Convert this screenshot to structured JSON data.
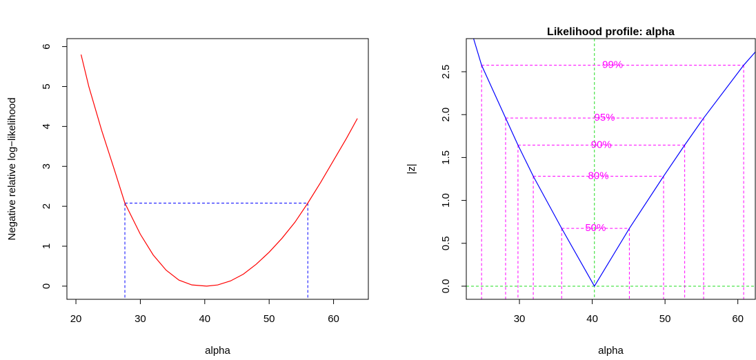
{
  "chart_data": [
    {
      "type": "line",
      "xlabel": "alpha",
      "ylabel": "Negative relative log−likelihood",
      "x": [
        20.8,
        22,
        24,
        26,
        27.6,
        30,
        32,
        34,
        36,
        38,
        40.3,
        42,
        44,
        46,
        48,
        50,
        52,
        54,
        56,
        58,
        60,
        62,
        63.7
      ],
      "values": [
        5.8,
        5.0,
        3.9,
        2.9,
        2.08,
        1.3,
        0.78,
        0.4,
        0.15,
        0.03,
        0,
        0.03,
        0.13,
        0.3,
        0.55,
        0.85,
        1.2,
        1.6,
        2.08,
        2.6,
        3.15,
        3.7,
        4.2
      ],
      "color": "#ff0000",
      "xlim": [
        18.6,
        65.4
      ],
      "ylim": [
        -0.33,
        6.2
      ],
      "xticks": [
        20,
        30,
        40,
        50,
        60
      ],
      "yticks": [
        0,
        1,
        2,
        3,
        4,
        5,
        6
      ],
      "ci": {
        "level": 2.08,
        "lower": 27.6,
        "upper": 56,
        "color": "#0000ff"
      }
    },
    {
      "type": "line",
      "title": "Likelihood profile: alpha",
      "xlabel": "alpha",
      "ylabel": "|z|",
      "x": [
        23.7,
        24.8,
        28.1,
        29.8,
        31.9,
        35.8,
        40.3,
        45.1,
        49.8,
        52.7,
        55.3,
        60.8,
        62.4
      ],
      "values": [
        2.886,
        2.576,
        1.96,
        1.645,
        1.282,
        0.674,
        0,
        0.674,
        1.282,
        1.645,
        1.96,
        2.576,
        2.73
      ],
      "color": "#0000ff",
      "xlim": [
        22.7,
        62.4
      ],
      "ylim": [
        -0.153,
        2.886
      ],
      "xticks": [
        30,
        40,
        50,
        60
      ],
      "yticks": [
        {
          "value": 0,
          "label": "0.0"
        },
        0.5,
        {
          "value": 1,
          "label": "1.0"
        },
        1.5,
        {
          "value": 2,
          "label": "2.0"
        },
        2.5
      ],
      "levels": [
        {
          "label": "50%",
          "z": 0.674,
          "lower": 35.8,
          "upper": 45.1
        },
        {
          "label": "80%",
          "z": 1.282,
          "lower": 31.9,
          "upper": 49.8
        },
        {
          "label": "90%",
          "z": 1.645,
          "lower": 29.8,
          "upper": 52.7
        },
        {
          "label": "95%",
          "z": 1.96,
          "lower": 28.1,
          "upper": 55.3
        },
        {
          "label": "99%",
          "z": 2.576,
          "lower": 24.8,
          "upper": 60.8
        }
      ],
      "level_color": "#ff00ff",
      "reference": {
        "x": 40.3,
        "y": 0,
        "color": "#22dd22"
      }
    }
  ]
}
